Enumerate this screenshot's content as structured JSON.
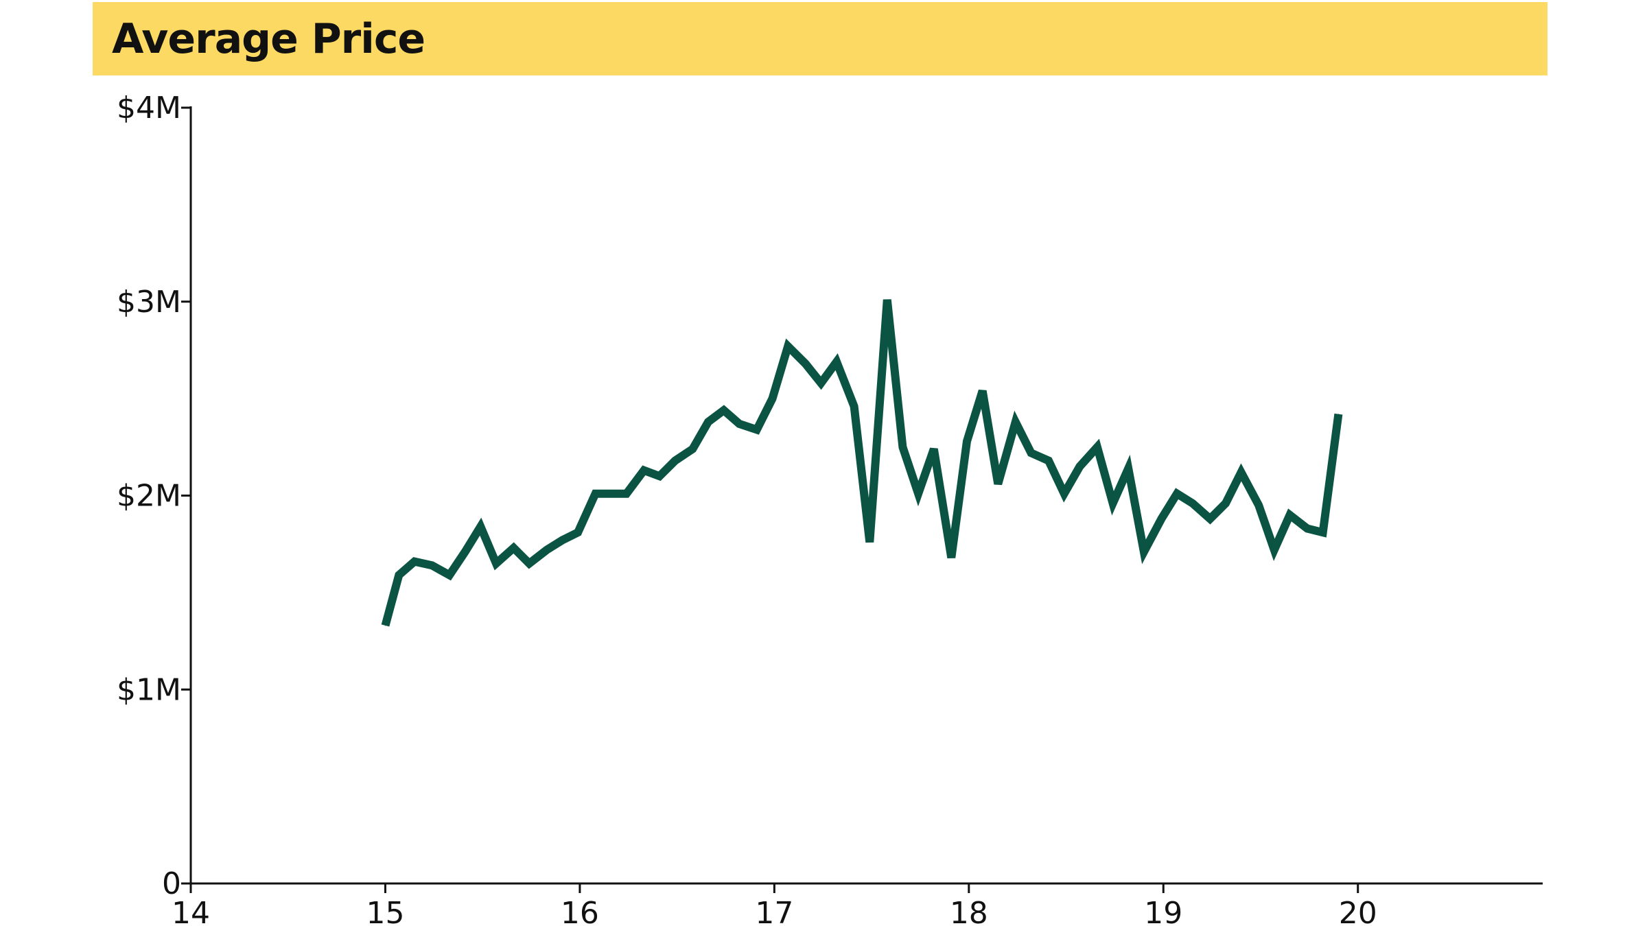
{
  "colors": {
    "header_background": "#fbd962",
    "line": "#0b5443",
    "axis": "#111111"
  },
  "chart_data": {
    "type": "line",
    "title": "Average Price",
    "xlabel": "",
    "ylabel": "",
    "xlim": [
      14,
      20.95
    ],
    "ylim": [
      0,
      4000000
    ],
    "x_ticks": [
      {
        "value": 14,
        "label": "14"
      },
      {
        "value": 15,
        "label": "15"
      },
      {
        "value": 16,
        "label": "16"
      },
      {
        "value": 17,
        "label": "17"
      },
      {
        "value": 18,
        "label": "18"
      },
      {
        "value": 19,
        "label": "19"
      },
      {
        "value": 20,
        "label": "20"
      }
    ],
    "y_ticks": [
      {
        "value": 0,
        "label": "0"
      },
      {
        "value": 1000000,
        "label": "$1M"
      },
      {
        "value": 2000000,
        "label": "$2M"
      },
      {
        "value": 3000000,
        "label": "$3M"
      },
      {
        "value": 4000000,
        "label": "$4M"
      }
    ],
    "grid": false,
    "series": [
      {
        "x": [
          15.0,
          15.07,
          15.15,
          15.24,
          15.33,
          15.41,
          15.49,
          15.57,
          15.66,
          15.74,
          15.83,
          15.91,
          15.99,
          16.08,
          16.16,
          16.24,
          16.33,
          16.41,
          16.49,
          16.58,
          16.66,
          16.74,
          16.82,
          16.91,
          16.99,
          17.07,
          17.16,
          17.24,
          17.32,
          17.41,
          17.49,
          17.58,
          17.66,
          17.74,
          17.82,
          17.91,
          17.99,
          18.07,
          18.15,
          18.24,
          18.32,
          18.41,
          18.49,
          18.57,
          18.66,
          18.74,
          18.82,
          18.9,
          18.99,
          19.07,
          19.15,
          19.24,
          19.32,
          19.4,
          19.49,
          19.57,
          19.65,
          19.74,
          19.82,
          19.9
        ],
        "values": [
          1330000,
          1590000,
          1660000,
          1640000,
          1590000,
          1710000,
          1840000,
          1650000,
          1730000,
          1650000,
          1720000,
          1770000,
          1810000,
          2010000,
          2010000,
          2010000,
          2130000,
          2100000,
          2180000,
          2240000,
          2380000,
          2440000,
          2370000,
          2340000,
          2500000,
          2770000,
          2680000,
          2580000,
          2690000,
          2460000,
          1760000,
          3010000,
          2250000,
          2010000,
          2240000,
          1680000,
          2280000,
          2540000,
          2060000,
          2380000,
          2220000,
          2180000,
          2010000,
          2150000,
          2250000,
          1960000,
          2140000,
          1710000,
          1880000,
          2010000,
          1960000,
          1880000,
          1960000,
          2120000,
          1950000,
          1720000,
          1900000,
          1830000,
          1810000,
          2420000
        ]
      }
    ]
  }
}
